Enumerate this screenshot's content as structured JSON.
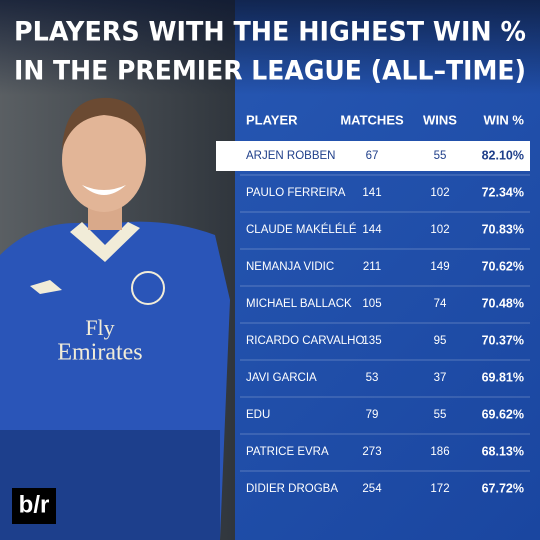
{
  "header": {
    "title_lines": [
      "PLAYERS WITH THE HIGHEST WIN %",
      "IN THE PREMIER LEAGUE (ALL–TIME)"
    ]
  },
  "photo": {
    "shirt_text": [
      "Fly",
      "Emirates"
    ]
  },
  "logo": "b/r",
  "table": {
    "columns": [
      "PLAYER",
      "MATCHES",
      "WINS",
      "WIN %"
    ],
    "rows": [
      [
        "ARJEN ROBBEN",
        "67",
        "55",
        "82.10%"
      ],
      [
        "PAULO FERREIRA",
        "141",
        "102",
        "72.34%"
      ],
      [
        "CLAUDE MAKÉLÉLÉ",
        "144",
        "102",
        "70.83%"
      ],
      [
        "NEMANJA VIDIC",
        "211",
        "149",
        "70.62%"
      ],
      [
        "MICHAEL BALLACK",
        "105",
        "74",
        "70.48%"
      ],
      [
        "RICARDO CARVALHO",
        "135",
        "95",
        "70.37%"
      ],
      [
        "JAVI GARCIA",
        "53",
        "37",
        "69.81%"
      ],
      [
        "EDU",
        "79",
        "55",
        "69.62%"
      ],
      [
        "PATRICE EVRA",
        "273",
        "186",
        "68.13%"
      ],
      [
        "DIDIER DROGBA",
        "254",
        "172",
        "67.72%"
      ]
    ]
  }
}
